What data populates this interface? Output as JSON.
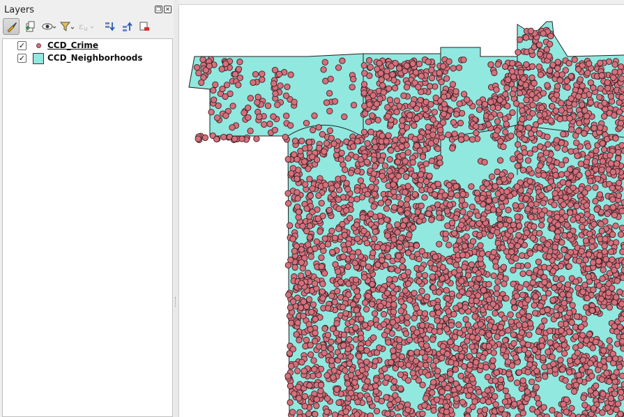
{
  "dock": {
    "title": "Layers",
    "float_icon": "float-icon",
    "close_icon": "close-icon"
  },
  "toolbar": {
    "buttons": [
      {
        "name": "style-manager-button",
        "icon": "brush-icon",
        "active": true
      },
      {
        "name": "add-group-button",
        "icon": "add-group-icon"
      },
      {
        "name": "manage-visibility-button",
        "icon": "eye-icon"
      },
      {
        "name": "filter-legend-button",
        "icon": "filter-icon"
      },
      {
        "name": "filter-expression-button",
        "icon": "expression-icon",
        "disabled": true
      },
      {
        "name": "expand-all-button",
        "icon": "expand-all-icon"
      },
      {
        "name": "collapse-all-button",
        "icon": "collapse-all-icon"
      },
      {
        "name": "remove-layer-button",
        "icon": "remove-layer-icon"
      }
    ]
  },
  "layers": [
    {
      "name": "CCD_Crime",
      "checked": true,
      "type": "point",
      "selected": true
    },
    {
      "name": "CCD_Neighborhoods",
      "checked": true,
      "type": "polygon",
      "selected": false
    }
  ],
  "map": {
    "polygon_fill": "#90e8df",
    "polygon_stroke": "#1f1f1f",
    "point_fill": "#d6707c",
    "point_stroke": "#3b2226"
  }
}
